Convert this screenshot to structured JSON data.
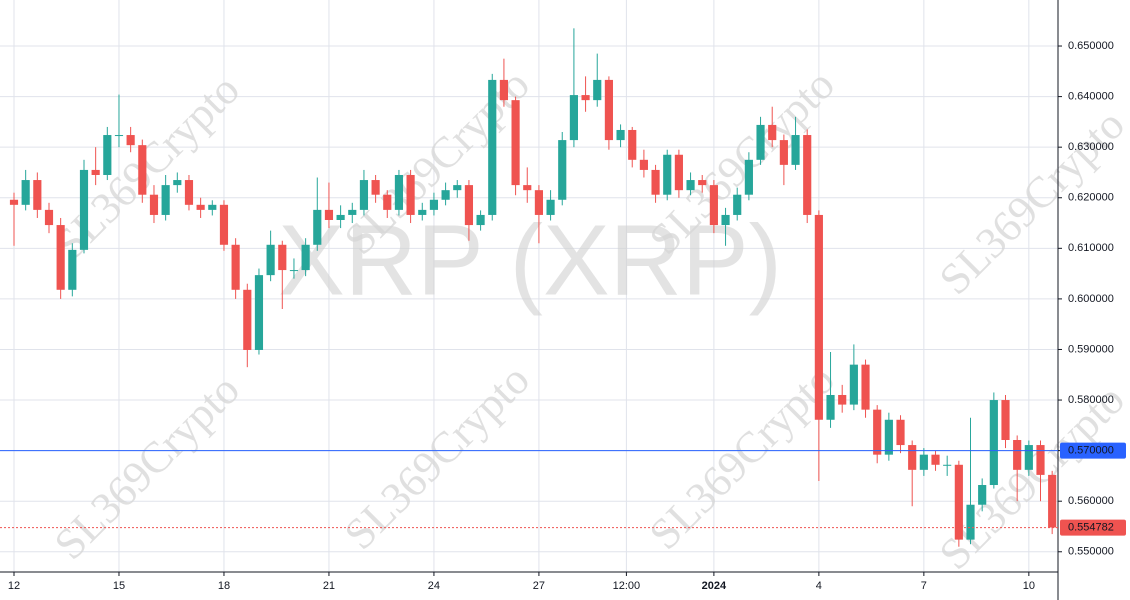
{
  "chart_data": {
    "type": "candlestick",
    "title": "XRP (XRP)",
    "watermark": "SL369Crypto",
    "up_color": "#26a69a",
    "down_color": "#ef5350",
    "grid": true,
    "open": [
      0.6196,
      0.6186,
      0.6235,
      0.6176,
      0.6146,
      0.6018,
      0.6097,
      0.6255,
      0.6245,
      0.6324,
      0.6324,
      0.6304,
      0.6206,
      0.6166,
      0.6225,
      0.6235,
      0.6186,
      0.6176,
      0.6186,
      0.6107,
      0.6018,
      0.5899,
      0.6047,
      0.6107,
      0.6057,
      0.6057,
      0.6107,
      0.6176,
      0.6156,
      0.6166,
      0.6176,
      0.6235,
      0.6206,
      0.6176,
      0.6245,
      0.6166,
      0.6176,
      0.6196,
      0.6215,
      0.6225,
      0.6146,
      0.6166,
      0.6433,
      0.6393,
      0.6225,
      0.6215,
      0.6166,
      0.6196,
      0.6314,
      0.6403,
      0.6393,
      0.6433,
      0.6314,
      0.6334,
      0.6275,
      0.6255,
      0.6206,
      0.6285,
      0.6215,
      0.6235,
      0.6225,
      0.6146,
      0.6166,
      0.6206,
      0.6275,
      0.6344,
      0.6314,
      0.6265,
      0.6324,
      0.6166,
      0.5761,
      0.581,
      0.5791,
      0.587,
      0.5781,
      0.5692,
      0.5761,
      0.5711,
      0.5662,
      0.5692,
      0.5672,
      0.5672,
      0.5524,
      0.5593,
      0.5632,
      0.58,
      0.5721,
      0.5662,
      0.5711,
      0.5652
    ],
    "high": [
      0.621,
      0.6255,
      0.625,
      0.619,
      0.616,
      0.611,
      0.6275,
      0.63,
      0.634,
      0.6404,
      0.634,
      0.6315,
      0.6225,
      0.6245,
      0.625,
      0.6245,
      0.62,
      0.6195,
      0.6195,
      0.612,
      0.603,
      0.606,
      0.6135,
      0.6115,
      0.608,
      0.612,
      0.624,
      0.623,
      0.6185,
      0.619,
      0.6255,
      0.6245,
      0.6215,
      0.6255,
      0.6255,
      0.619,
      0.621,
      0.623,
      0.6235,
      0.6235,
      0.6175,
      0.6445,
      0.6475,
      0.64,
      0.626,
      0.6225,
      0.6215,
      0.633,
      0.6535,
      0.644,
      0.6485,
      0.644,
      0.6345,
      0.634,
      0.6295,
      0.6265,
      0.6295,
      0.6295,
      0.625,
      0.6245,
      0.6235,
      0.618,
      0.622,
      0.629,
      0.636,
      0.638,
      0.6325,
      0.636,
      0.6335,
      0.6175,
      0.5895,
      0.583,
      0.591,
      0.588,
      0.579,
      0.5775,
      0.577,
      0.572,
      0.5705,
      0.57,
      0.569,
      0.568,
      0.5765,
      0.5645,
      0.5815,
      0.581,
      0.573,
      0.572,
      0.572,
      0.566
    ],
    "low": [
      0.6105,
      0.6175,
      0.616,
      0.613,
      0.6,
      0.6005,
      0.609,
      0.6225,
      0.6235,
      0.63,
      0.629,
      0.619,
      0.615,
      0.6155,
      0.621,
      0.6175,
      0.616,
      0.6165,
      0.6095,
      0.6,
      0.5865,
      0.589,
      0.6035,
      0.598,
      0.604,
      0.6045,
      0.6095,
      0.614,
      0.614,
      0.615,
      0.6165,
      0.619,
      0.616,
      0.6165,
      0.615,
      0.6155,
      0.6165,
      0.6185,
      0.62,
      0.6115,
      0.6135,
      0.6155,
      0.638,
      0.6205,
      0.619,
      0.611,
      0.6155,
      0.6185,
      0.63,
      0.637,
      0.638,
      0.6295,
      0.63,
      0.626,
      0.624,
      0.619,
      0.6195,
      0.62,
      0.6205,
      0.621,
      0.613,
      0.6105,
      0.6155,
      0.6195,
      0.6265,
      0.63,
      0.6225,
      0.6255,
      0.615,
      0.564,
      0.5745,
      0.5775,
      0.578,
      0.5765,
      0.5675,
      0.568,
      0.5695,
      0.559,
      0.565,
      0.566,
      0.565,
      0.551,
      0.5515,
      0.558,
      0.5625,
      0.5705,
      0.56,
      0.565,
      0.56,
      0.5535
    ],
    "close": [
      0.6186,
      0.6235,
      0.6176,
      0.6146,
      0.6018,
      0.6097,
      0.6255,
      0.6245,
      0.6324,
      0.6324,
      0.6304,
      0.6206,
      0.6166,
      0.6225,
      0.6235,
      0.6186,
      0.6176,
      0.6186,
      0.6107,
      0.6018,
      0.5899,
      0.6047,
      0.6107,
      0.6057,
      0.6057,
      0.6107,
      0.6176,
      0.6156,
      0.6166,
      0.6176,
      0.6235,
      0.6206,
      0.6176,
      0.6245,
      0.6166,
      0.6176,
      0.6196,
      0.6215,
      0.6225,
      0.6146,
      0.6166,
      0.6433,
      0.6393,
      0.6225,
      0.6215,
      0.6166,
      0.6196,
      0.6314,
      0.6403,
      0.6393,
      0.6433,
      0.6314,
      0.6334,
      0.6275,
      0.6255,
      0.6206,
      0.6285,
      0.6215,
      0.6235,
      0.6225,
      0.6146,
      0.6166,
      0.6206,
      0.6275,
      0.6344,
      0.6314,
      0.6265,
      0.6324,
      0.6166,
      0.5761,
      0.581,
      0.5791,
      0.587,
      0.5781,
      0.5692,
      0.5761,
      0.5711,
      0.5662,
      0.5692,
      0.5672,
      0.5672,
      0.5524,
      0.5593,
      0.5632,
      0.58,
      0.5721,
      0.5662,
      0.5711,
      0.5652,
      0.5548
    ],
    "xlim": [
      -1.2,
      89.5
    ],
    "xticks": [
      {
        "value": 0,
        "label": "12"
      },
      {
        "value": 9,
        "label": "15"
      },
      {
        "value": 18,
        "label": "18"
      },
      {
        "value": 27,
        "label": "21"
      },
      {
        "value": 36,
        "label": "24"
      },
      {
        "value": 45,
        "label": "27"
      },
      {
        "value": 52.5,
        "label": "12:00"
      },
      {
        "value": 60,
        "label": "2024"
      },
      {
        "value": 69,
        "label": "4"
      },
      {
        "value": 78,
        "label": "7"
      },
      {
        "value": 87,
        "label": "10"
      }
    ],
    "ylim": [
      0.546,
      0.6591
    ],
    "yticks": [
      {
        "value": 0.55,
        "label": "0.550000"
      },
      {
        "value": 0.56,
        "label": "0.560000"
      },
      {
        "value": 0.57,
        "label": "0.570000"
      },
      {
        "value": 0.58,
        "label": "0.580000"
      },
      {
        "value": 0.59,
        "label": "0.590000"
      },
      {
        "value": 0.6,
        "label": "0.600000"
      },
      {
        "value": 0.61,
        "label": "0.610000"
      },
      {
        "value": 0.62,
        "label": "0.620000"
      },
      {
        "value": 0.63,
        "label": "0.630000"
      },
      {
        "value": 0.64,
        "label": "0.640000"
      },
      {
        "value": 0.65,
        "label": "0.650000"
      }
    ],
    "price_lines": [
      {
        "value": 0.57,
        "label": "0.570000",
        "color": "#2962ff",
        "style": "solid"
      },
      {
        "value": 0.554782,
        "label": "0.554782",
        "color": "#ef5350",
        "style": "dotted"
      }
    ]
  }
}
